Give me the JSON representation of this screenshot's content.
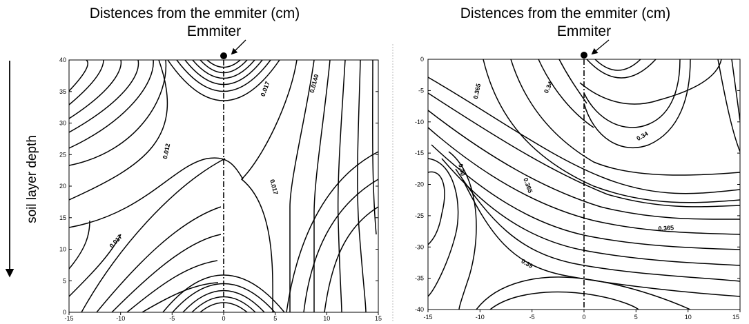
{
  "left_panel": {
    "title": "Distences from the emmiter (cm)",
    "emitter_label": "Emmiter",
    "y_axis_label": "soil layer depth",
    "x_ticks": [
      "-15",
      "-10",
      "-5",
      "0",
      "5",
      "10",
      "15"
    ],
    "y_ticks": [
      "0",
      "5",
      "10",
      "15",
      "20",
      "25",
      "30",
      "35",
      "40"
    ],
    "contour_labels": [
      "0.017",
      "0.012",
      "0.017",
      "0.0140",
      "0.017"
    ]
  },
  "right_panel": {
    "title": "Distences from the emmiter (cm)",
    "emitter_label": "Emmiter",
    "x_ticks": [
      "-15",
      "-10",
      "-5",
      "0",
      "5",
      "10",
      "15"
    ],
    "y_ticks": [
      "0",
      "-5",
      "-10",
      "-15",
      "-20",
      "-25",
      "-30",
      "-35",
      "-40"
    ],
    "contour_labels": [
      "0.365",
      "0.34",
      "0.34",
      "0.40",
      "0.365",
      "0.365",
      "0.39"
    ]
  },
  "colors": {
    "ink": "#000000",
    "background": "#ffffff",
    "divider": "#bbbbbb"
  }
}
